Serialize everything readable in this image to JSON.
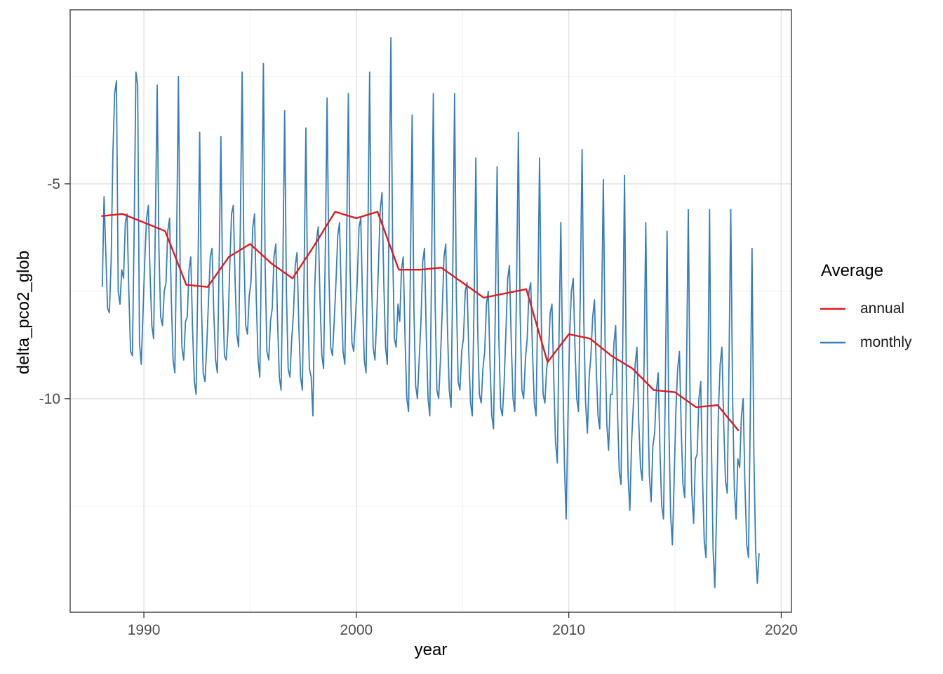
{
  "legend": {
    "title": "Average",
    "items": [
      {
        "label": "annual",
        "color": "#E41A1C"
      },
      {
        "label": "monthly",
        "color": "#377EB8"
      }
    ]
  },
  "colors": {
    "major_grid": "#E2E2E2",
    "minor_grid": "#F1F1F1",
    "panel_border": "#333333",
    "tick_mark": "#333333",
    "tick_label": "#4D4D4D"
  },
  "chart_data": {
    "type": "line",
    "title": "",
    "xlabel": "year",
    "ylabel": "delta_pco2_glob",
    "xlim": [
      1986.53,
      2020.48
    ],
    "ylim": [
      -14.97,
      -0.95
    ],
    "grid": "major and minor, light gray on white panel",
    "legend_position": "right",
    "legend_title": "Average",
    "x_major_ticks": [
      1990,
      2000,
      2010,
      2020
    ],
    "x_tick_labels": [
      "1990",
      "2000",
      "2010",
      "2020"
    ],
    "x_minor_gridlines": [
      1995,
      2005,
      2015
    ],
    "y_major_ticks": [
      -5,
      -10
    ],
    "y_tick_labels": [
      "-5",
      "-10"
    ],
    "y_minor_gridlines": [
      -2.5,
      -7.5,
      -12.5
    ],
    "series": [
      {
        "name": "monthly",
        "color": "#377EB8",
        "stroke_width": 1.8,
        "x_start": 1988,
        "step_years": 0.083333,
        "x_offset": 0.5,
        "values": [
          -7.4,
          -5.3,
          -6.6,
          -7.9,
          -8.0,
          -6.8,
          -4.3,
          -2.9,
          -2.6,
          -7.5,
          -7.8,
          -7.0,
          -7.2,
          -5.9,
          -5.7,
          -7.5,
          -8.9,
          -9.0,
          -6.1,
          -2.4,
          -2.7,
          -8.7,
          -9.2,
          -8.0,
          -6.8,
          -5.8,
          -5.5,
          -7.1,
          -8.3,
          -8.6,
          -5.9,
          -2.7,
          -6.5,
          -8.1,
          -8.3,
          -7.5,
          -7.3,
          -6.1,
          -5.8,
          -7.7,
          -9.1,
          -9.4,
          -6.3,
          -2.5,
          -7.0,
          -8.8,
          -9.1,
          -8.2,
          -8.1,
          -7.0,
          -6.7,
          -8.4,
          -9.6,
          -9.9,
          -7.2,
          -3.8,
          -7.8,
          -9.4,
          -9.6,
          -8.8,
          -7.7,
          -6.7,
          -6.5,
          -8.0,
          -9.1,
          -9.4,
          -6.9,
          -3.9,
          -7.5,
          -9.0,
          -9.1,
          -8.4,
          -6.9,
          -5.7,
          -5.5,
          -7.2,
          -8.5,
          -8.8,
          -5.9,
          -2.4,
          -6.6,
          -8.3,
          -8.5,
          -7.6,
          -7.3,
          -6.0,
          -5.7,
          -7.7,
          -9.1,
          -9.5,
          -6.2,
          -2.2,
          -6.9,
          -8.9,
          -9.1,
          -8.2,
          -7.9,
          -6.7,
          -6.4,
          -8.2,
          -9.5,
          -9.8,
          -6.9,
          -3.3,
          -7.5,
          -9.3,
          -9.5,
          -8.6,
          -8.0,
          -6.9,
          -6.6,
          -8.3,
          -9.5,
          -9.8,
          -7.1,
          -3.7,
          -7.7,
          -9.3,
          -9.5,
          -10.4,
          -7.4,
          -6.3,
          -6.0,
          -7.7,
          -9.0,
          -9.3,
          -6.5,
          -3.0,
          -7.1,
          -8.8,
          -9.0,
          -8.2,
          -7.3,
          -6.2,
          -5.9,
          -7.6,
          -8.9,
          -9.2,
          -6.4,
          -2.9,
          -7.0,
          -8.7,
          -8.9,
          -8.1,
          -7.3,
          -6.0,
          -5.8,
          -7.7,
          -9.1,
          -9.4,
          -6.3,
          -2.4,
          -7.0,
          -8.8,
          -9.1,
          -8.1,
          -6.9,
          -5.6,
          -5.2,
          -7.3,
          -8.8,
          -9.2,
          -5.8,
          -1.6,
          -6.5,
          -8.6,
          -8.8,
          -7.8,
          -8.2,
          -7.0,
          -6.7,
          -8.6,
          -10.0,
          -10.3,
          -7.2,
          -3.4,
          -7.9,
          -9.7,
          -10.0,
          -9.1,
          -8.2,
          -6.8,
          -6.5,
          -8.5,
          -10.0,
          -10.4,
          -7.0,
          -2.9,
          -7.8,
          -9.8,
          -10.0,
          -9.1,
          -8.0,
          -6.7,
          -6.4,
          -8.4,
          -9.8,
          -10.2,
          -6.9,
          -2.9,
          -7.6,
          -9.6,
          -9.8,
          -8.9,
          -8.6,
          -7.5,
          -7.3,
          -8.9,
          -10.1,
          -10.4,
          -7.7,
          -4.4,
          -8.3,
          -9.9,
          -10.1,
          -9.3,
          -8.9,
          -7.8,
          -7.5,
          -9.2,
          -10.4,
          -10.7,
          -8.0,
          -4.6,
          -8.6,
          -10.2,
          -10.4,
          -9.6,
          -8.4,
          -7.2,
          -6.9,
          -8.7,
          -10.0,
          -10.3,
          -7.4,
          -3.8,
          -8.0,
          -9.8,
          -10.0,
          -9.1,
          -8.6,
          -7.5,
          -7.3,
          -8.9,
          -10.1,
          -10.4,
          -7.7,
          -4.4,
          -8.3,
          -9.9,
          -10.1,
          -9.3,
          -9.0,
          -8.0,
          -7.8,
          -9.5,
          -11.0,
          -11.5,
          -8.5,
          -5.9,
          -9.0,
          -11.5,
          -12.8,
          -10.5,
          -8.5,
          -7.5,
          -7.2,
          -8.8,
          -10.0,
          -10.3,
          -7.5,
          -4.2,
          -8.2,
          -10.1,
          -10.8,
          -9.5,
          -9.0,
          -8.1,
          -7.7,
          -9.3,
          -10.4,
          -10.7,
          -8.1,
          -4.9,
          -8.7,
          -10.6,
          -11.2,
          -9.9,
          -9.9,
          -8.7,
          -8.3,
          -10.3,
          -11.7,
          -12.0,
          -8.7,
          -4.8,
          -9.5,
          -11.8,
          -12.6,
          -11.0,
          -10.1,
          -9.2,
          -8.8,
          -10.5,
          -11.6,
          -11.9,
          -9.2,
          -5.9,
          -9.8,
          -11.8,
          -12.4,
          -11.1,
          -10.8,
          -9.8,
          -9.4,
          -11.2,
          -12.5,
          -12.8,
          -9.8,
          -6.1,
          -10.5,
          -12.7,
          -13.4,
          -11.9,
          -10.3,
          -9.3,
          -8.9,
          -10.7,
          -12.0,
          -12.3,
          -9.3,
          -5.6,
          -10.0,
          -12.2,
          -12.9,
          -11.4,
          -11.3,
          -10.0,
          -9.6,
          -11.8,
          -13.3,
          -13.7,
          -10.0,
          -5.6,
          -10.9,
          -13.5,
          -14.4,
          -12.6,
          -10.3,
          -9.2,
          -8.8,
          -10.6,
          -11.9,
          -12.2,
          -9.2,
          -5.6,
          -9.9,
          -12.1,
          -12.8,
          -11.4,
          -11.6,
          -10.4,
          -10.0,
          -12.0,
          -13.4,
          -13.7,
          -10.4,
          -6.5,
          -11.2,
          -13.5,
          -14.3,
          -13.6
        ]
      },
      {
        "name": "annual",
        "color": "#E41A1C",
        "stroke_width": 2.4,
        "x_start": 1988,
        "step_years": 1,
        "x_offset": 0,
        "values": [
          -5.75,
          -5.7,
          -5.9,
          -6.1,
          -7.35,
          -7.4,
          -6.7,
          -6.4,
          -6.85,
          -7.2,
          -6.45,
          -5.65,
          -5.8,
          -5.65,
          -7.0,
          -7.0,
          -6.95,
          -7.3,
          -7.65,
          -7.55,
          -7.45,
          -9.15,
          -8.5,
          -8.6,
          -9.0,
          -9.3,
          -9.8,
          -9.85,
          -10.2,
          -10.15,
          -10.75
        ]
      }
    ]
  }
}
